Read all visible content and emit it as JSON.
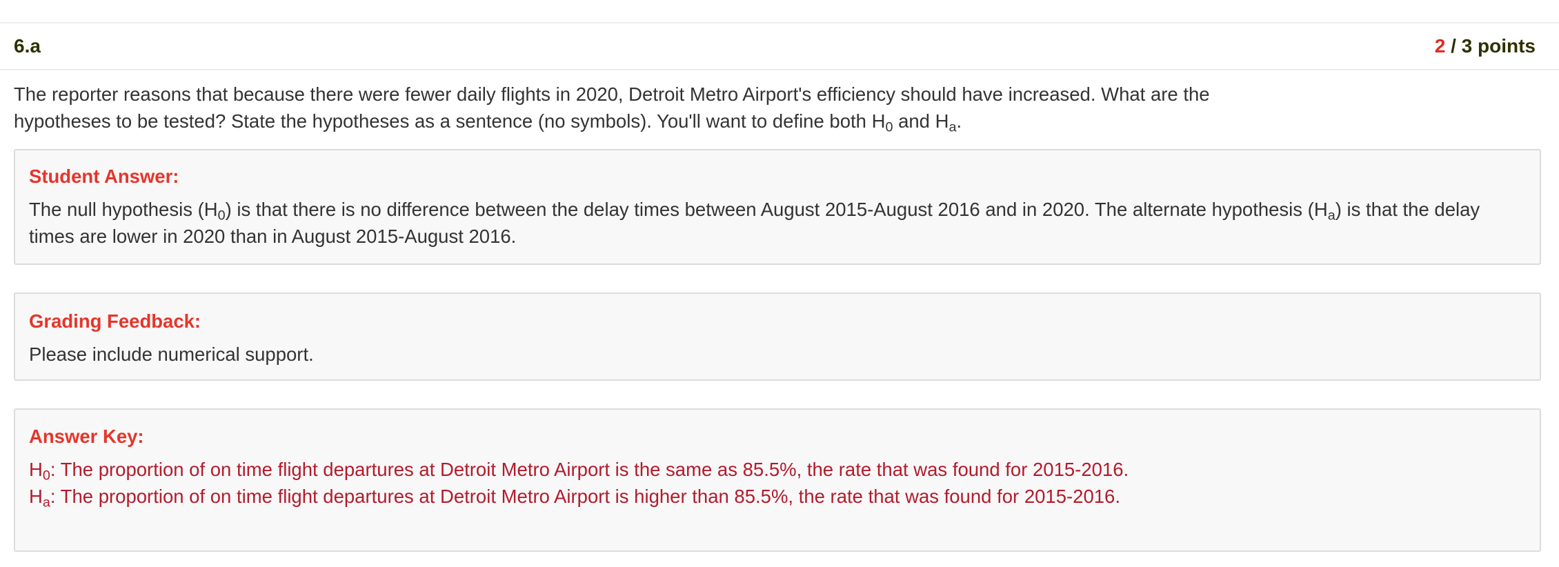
{
  "question": {
    "number": "6.a",
    "points_earned": "2",
    "points_rest": " / 3 points",
    "prompt_part1": "The reporter reasons that because there were fewer daily flights in 2020, Detroit Metro Airport's efficiency should have increased. What are the hypotheses to be tested? State the hypotheses as a sentence (no symbols). You'll want to define both H",
    "prompt_sub1": "0",
    "prompt_part2": " and H",
    "prompt_sub2": "a",
    "prompt_part3": "."
  },
  "student_answer": {
    "title": "Student Answer:",
    "text1": "The null hypothesis (H",
    "sub1": "0",
    "text2": ") is that there is no difference between the delay times between August 2015-August 2016 and in 2020. The alternate hypothesis (H",
    "sub2": "a",
    "text3": ") is that the delay times are lower in 2020 than in August 2015-August 2016."
  },
  "grading_feedback": {
    "title": "Grading Feedback:",
    "text": "Please include numerical support."
  },
  "answer_key": {
    "title": "Answer Key:",
    "line1_h": "H",
    "line1_sub": "0",
    "line1_text": ": The proportion of on time flight departures at Detroit Metro Airport is the same as 85.5%, the rate that was found for 2015-2016.",
    "line2_h": "H",
    "line2_sub": "a",
    "line2_text": ": The proportion of on time flight departures at Detroit Metro Airport is higher than 85.5%, the rate that was found for 2015-2016."
  },
  "colors": {
    "heading": "#2e3100",
    "earned": "#e8271c",
    "panel_title": "#e5352b",
    "answer_key_text": "#b31b2c",
    "body_text": "#333333",
    "panel_bg": "#f8f8f8",
    "panel_border": "#dcdcdc"
  }
}
